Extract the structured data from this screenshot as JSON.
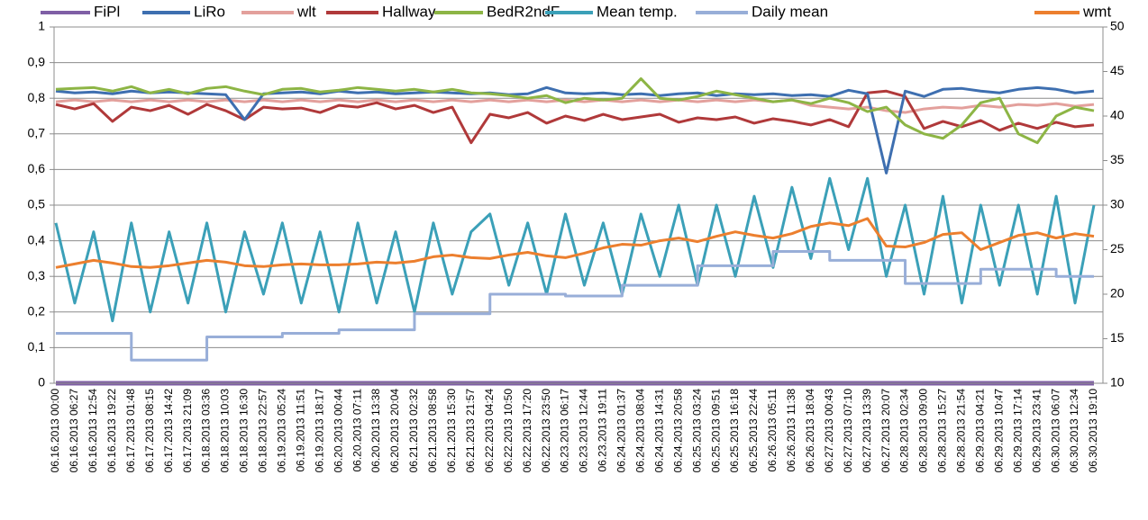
{
  "chart_data": {
    "type": "line",
    "categories": [
      "06.16.2013 00:00",
      "06.16.2013 06:27",
      "06.16.2013 12:54",
      "06.16.2013 19:22",
      "06.17.2013 01:48",
      "06.17.2013 08:15",
      "06.17.2013 14:42",
      "06.17.2013 21:09",
      "06.18.2013 03:36",
      "06.18.2013 10:03",
      "06.18.2013 16:30",
      "06.18.2013 22:57",
      "06.19.2013 05:24",
      "06.19.2013 11:51",
      "06.19.2013 18:17",
      "06.20.2013 00:44",
      "06.20.2013 07:11",
      "06.20.2013 13:38",
      "06.20.2013 20:04",
      "06.21.2013 02:32",
      "06.21.2013 08:58",
      "06.21.2013 15:30",
      "06.21.2013 21:57",
      "06.22.2013 04:24",
      "06.22.2013 10:50",
      "06.22.2013 17:20",
      "06.22.2013 23:50",
      "06.23.2013 06:17",
      "06.23.2013 12:44",
      "06.23.2013 19:11",
      "06.24.2013 01:37",
      "06.24.2013 08:04",
      "06.24.2013 14:31",
      "06.24.2013 20:58",
      "06.25.2013 03:24",
      "06.25.2013 09:51",
      "06.25.2013 16:18",
      "06.25.2013 22:44",
      "06.26.2013 05:11",
      "06.26.2013 11:38",
      "06.26.2013 18:04",
      "06.27.2013 00:43",
      "06.27.2013 07:10",
      "06.27.2013 13:39",
      "06.27.2013 20:07",
      "06.28.2013 02:34",
      "06.28.2013 09:00",
      "06.28.2013 15:27",
      "06.28.2013 21:54",
      "06.29.2013 04:21",
      "06.29.2013 10:47",
      "06.29.2013 17:14",
      "06.29.2013 23:41",
      "06.30.2013 06:07",
      "06.30.2013 12:34",
      "06.30.2013 19:10"
    ],
    "ylim": [
      0,
      1
    ],
    "yticks": [
      0,
      {
        "value": 0.1,
        "label": "0,1"
      },
      {
        "value": 0.2,
        "label": "0,2"
      },
      {
        "value": 0.3,
        "label": "0,3"
      },
      {
        "value": 0.4,
        "label": "0,4"
      },
      {
        "value": 0.5,
        "label": "0,5"
      },
      {
        "value": 0.6,
        "label": "0,6"
      },
      {
        "value": 0.7,
        "label": "0,7"
      },
      {
        "value": 0.8,
        "label": "0,8"
      },
      {
        "value": 0.9,
        "label": "0,9"
      },
      1
    ],
    "y2lim": [
      10,
      50
    ],
    "y2ticks": [
      10,
      15,
      20,
      25,
      30,
      35,
      40,
      45,
      50
    ],
    "grid": true,
    "legend": "top",
    "series": [
      {
        "name": "FiPl",
        "color": "#7f5fa5",
        "axis": "y",
        "values": [
          0,
          0,
          0,
          0,
          0,
          0,
          0,
          0,
          0,
          0,
          0,
          0,
          0,
          0,
          0,
          0,
          0,
          0,
          0,
          0,
          0,
          0,
          0,
          0,
          0,
          0,
          0,
          0,
          0,
          0,
          0,
          0,
          0,
          0,
          0,
          0,
          0,
          0,
          0,
          0,
          0,
          0,
          0,
          0,
          0,
          0,
          0,
          0,
          0,
          0,
          0,
          0,
          0,
          0,
          0,
          0
        ]
      },
      {
        "name": "LiRo",
        "color": "#3e6fb0",
        "axis": "y2",
        "values": [
          42.8,
          42.6,
          42.7,
          42.5,
          42.8,
          42.6,
          42.7,
          42.6,
          42.5,
          42.4,
          39.6,
          42.5,
          42.6,
          42.7,
          42.5,
          42.8,
          42.6,
          42.7,
          42.5,
          42.6,
          42.7,
          42.6,
          42.5,
          42.6,
          42.4,
          42.5,
          43.2,
          42.6,
          42.5,
          42.6,
          42.4,
          42.5,
          42.3,
          42.5,
          42.6,
          42.3,
          42.5,
          42.4,
          42.5,
          42.3,
          42.4,
          42.2,
          42.9,
          42.5,
          33.6,
          42.8,
          42.2,
          43,
          43.1,
          42.8,
          42.6,
          43,
          43.2,
          43,
          42.6,
          42.8
        ]
      },
      {
        "name": "wlt",
        "color": "#e3a09c",
        "axis": "y2",
        "values": [
          41.6,
          41.8,
          41.6,
          41.8,
          41.6,
          41.8,
          41.6,
          41.8,
          41.6,
          41.8,
          41.6,
          41.8,
          41.6,
          41.8,
          41.6,
          41.8,
          41.6,
          41.8,
          41.6,
          41.8,
          41.6,
          41.8,
          41.6,
          41.8,
          41.6,
          41.8,
          41.6,
          41.8,
          41.6,
          41.8,
          41.6,
          41.8,
          41.6,
          41.8,
          41.6,
          41.8,
          41.6,
          41.8,
          41.6,
          41.8,
          41.2,
          41,
          40.8,
          41,
          40.6,
          40.4,
          40.8,
          41,
          40.9,
          41.2,
          41,
          41.3,
          41.2,
          41.4,
          41.1,
          41.3
        ]
      },
      {
        "name": "Hallway",
        "color": "#b0393a",
        "axis": "y2",
        "values": [
          41.3,
          40.8,
          41.4,
          39.4,
          41,
          40.6,
          41.2,
          40.2,
          41.3,
          40.6,
          39.6,
          41,
          40.8,
          40.9,
          40.4,
          41.2,
          41,
          41.5,
          40.8,
          41.2,
          40.4,
          41,
          37,
          40.2,
          39.8,
          40.4,
          39.2,
          40,
          39.5,
          40.2,
          39.6,
          39.9,
          40.2,
          39.3,
          39.8,
          39.6,
          39.9,
          39.2,
          39.7,
          39.4,
          39,
          39.6,
          38.8,
          42.6,
          42.8,
          42.2,
          38.6,
          39.4,
          38.8,
          39.5,
          38.4,
          39.2,
          38.6,
          39.3,
          38.8,
          39
        ]
      },
      {
        "name": "BedR2ndF",
        "color": "#8db545",
        "axis": "y2",
        "values": [
          43,
          43.1,
          43.2,
          42.8,
          43.3,
          42.6,
          43,
          42.5,
          43.1,
          43.3,
          42.8,
          42.4,
          43,
          43.1,
          42.7,
          42.9,
          43.2,
          43,
          42.8,
          43,
          42.7,
          43,
          42.6,
          42.5,
          42.3,
          42,
          42.3,
          41.5,
          42,
          41.8,
          42,
          44.2,
          42,
          41.8,
          42.2,
          42.8,
          42.4,
          42,
          41.6,
          41.8,
          41.4,
          42,
          41.5,
          40.5,
          41,
          39,
          38,
          37.5,
          39,
          41.5,
          42,
          38,
          37,
          40,
          41,
          40.6
        ]
      },
      {
        "name": "Mean temp.",
        "color": "#3ba0b8",
        "axis": "y2",
        "values": [
          28,
          19,
          27,
          17,
          28,
          18,
          27,
          19,
          28,
          18,
          27,
          20,
          28,
          19,
          27,
          18,
          28,
          19,
          27,
          18,
          28,
          20,
          27,
          29,
          21,
          28,
          20,
          29,
          21,
          28,
          20,
          29,
          22,
          30,
          21,
          30,
          22,
          31,
          23,
          32,
          24,
          33,
          25,
          33,
          22,
          30,
          20,
          31,
          19,
          30,
          21,
          30,
          20,
          31,
          19,
          30
        ]
      },
      {
        "name": "Daily mean",
        "color": "#98aed8",
        "axis": "y2",
        "step": true,
        "values": [
          15.6,
          15.6,
          15.6,
          15.6,
          12.6,
          12.6,
          12.6,
          12.6,
          15.2,
          15.2,
          15.2,
          15.2,
          15.6,
          15.6,
          15.6,
          16,
          16,
          16,
          16,
          17.8,
          17.8,
          17.8,
          17.8,
          20,
          20,
          20,
          20,
          19.8,
          19.8,
          19.8,
          21,
          21,
          21,
          21,
          23.2,
          23.2,
          23.2,
          23.2,
          24.8,
          24.8,
          24.8,
          23.8,
          23.8,
          23.8,
          23.8,
          21.2,
          21.2,
          21.2,
          21.2,
          22.8,
          22.8,
          22.8,
          22.8,
          22,
          22,
          22
        ]
      },
      {
        "name": "wmt",
        "color": "#ec7f2e",
        "axis": "y2",
        "values": [
          23,
          23.4,
          23.8,
          23.5,
          23.1,
          23,
          23.2,
          23.5,
          23.8,
          23.6,
          23.2,
          23.1,
          23.3,
          23.4,
          23.3,
          23.3,
          23.4,
          23.6,
          23.5,
          23.7,
          24.2,
          24.4,
          24.1,
          24,
          24.4,
          24.7,
          24.3,
          24.1,
          24.6,
          25.2,
          25.6,
          25.5,
          26,
          26.3,
          25.9,
          26.5,
          27,
          26.6,
          26.3,
          26.8,
          27.6,
          28,
          27.7,
          28.5,
          25.4,
          25.3,
          25.8,
          26.7,
          26.9,
          25,
          25.8,
          26.6,
          26.9,
          26.3,
          26.8,
          26.5
        ]
      }
    ]
  }
}
